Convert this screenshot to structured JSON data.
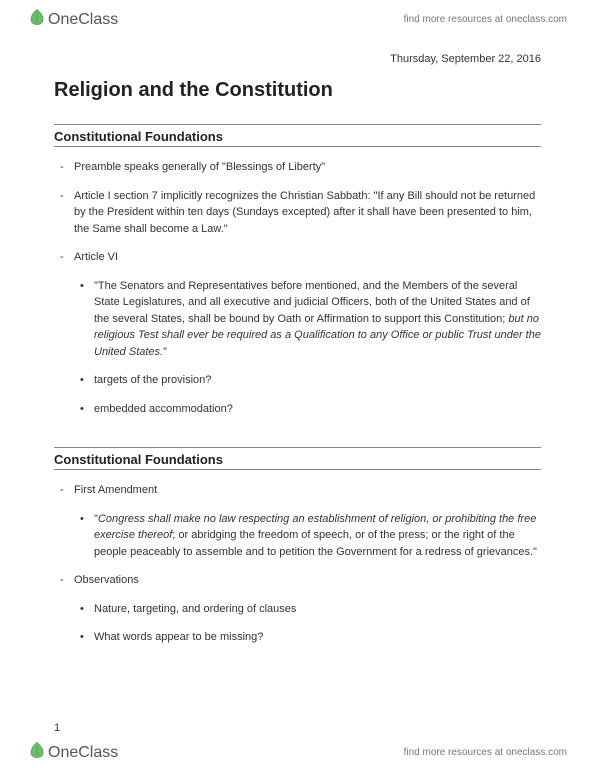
{
  "brand": {
    "name": "OneClass",
    "tagline": "find more resources at oneclass.com",
    "iconColor": "#6bbf6b",
    "iconStroke": "#4a9b4a"
  },
  "date": "Thursday, September 22, 2016",
  "title": "Religion and the Constitution",
  "sections": [
    {
      "heading": "Constitutional Foundations",
      "items": [
        {
          "level": 0,
          "marker": "-",
          "text": "Preamble speaks generally of \"Blessings of Liberty\""
        },
        {
          "level": 0,
          "marker": "-",
          "text": "Article I section 7 implicitly recognizes the Christian Sabbath: \"If any Bill should not be returned by the President within ten days (Sundays excepted) after it shall have been presented to him, the Same shall become a Law.\""
        },
        {
          "level": 0,
          "marker": "-",
          "text": "Article VI"
        },
        {
          "level": 1,
          "marker": "•",
          "html": "\"The Senators and Representatives before mentioned, and the Members of the several State Legislatures, and all executive and judicial Officers, both of the United States and of the several States, shall be bound by Oath or Affirmation to support this Constitution; <span class=\"italic\">but no religious Test shall ever be required as a Qualification to any Office or public Trust under the United States.</span>\""
        },
        {
          "level": 1,
          "marker": "•",
          "text": "targets of the provision?"
        },
        {
          "level": 1,
          "marker": "•",
          "text": "embedded accommodation?"
        }
      ]
    },
    {
      "heading": "Constitutional Foundations",
      "items": [
        {
          "level": 0,
          "marker": "-",
          "text": "First Amendment"
        },
        {
          "level": 1,
          "marker": "•",
          "html": "\"<span class=\"italic\">Congress shall make no law respecting an establishment of religion, or prohibiting the free exercise thereof</span>; or abridging the freedom of speech, or of the press; or the right of the people peaceably to assemble and to petition the Government for a redress of grievances.\""
        },
        {
          "level": 0,
          "marker": "-",
          "text": "Observations"
        },
        {
          "level": 1,
          "marker": "•",
          "text": "Nature, targeting, and ordering of clauses"
        },
        {
          "level": 1,
          "marker": "•",
          "text": "What words appear to be missing?"
        }
      ]
    }
  ],
  "pageNumber": "1"
}
